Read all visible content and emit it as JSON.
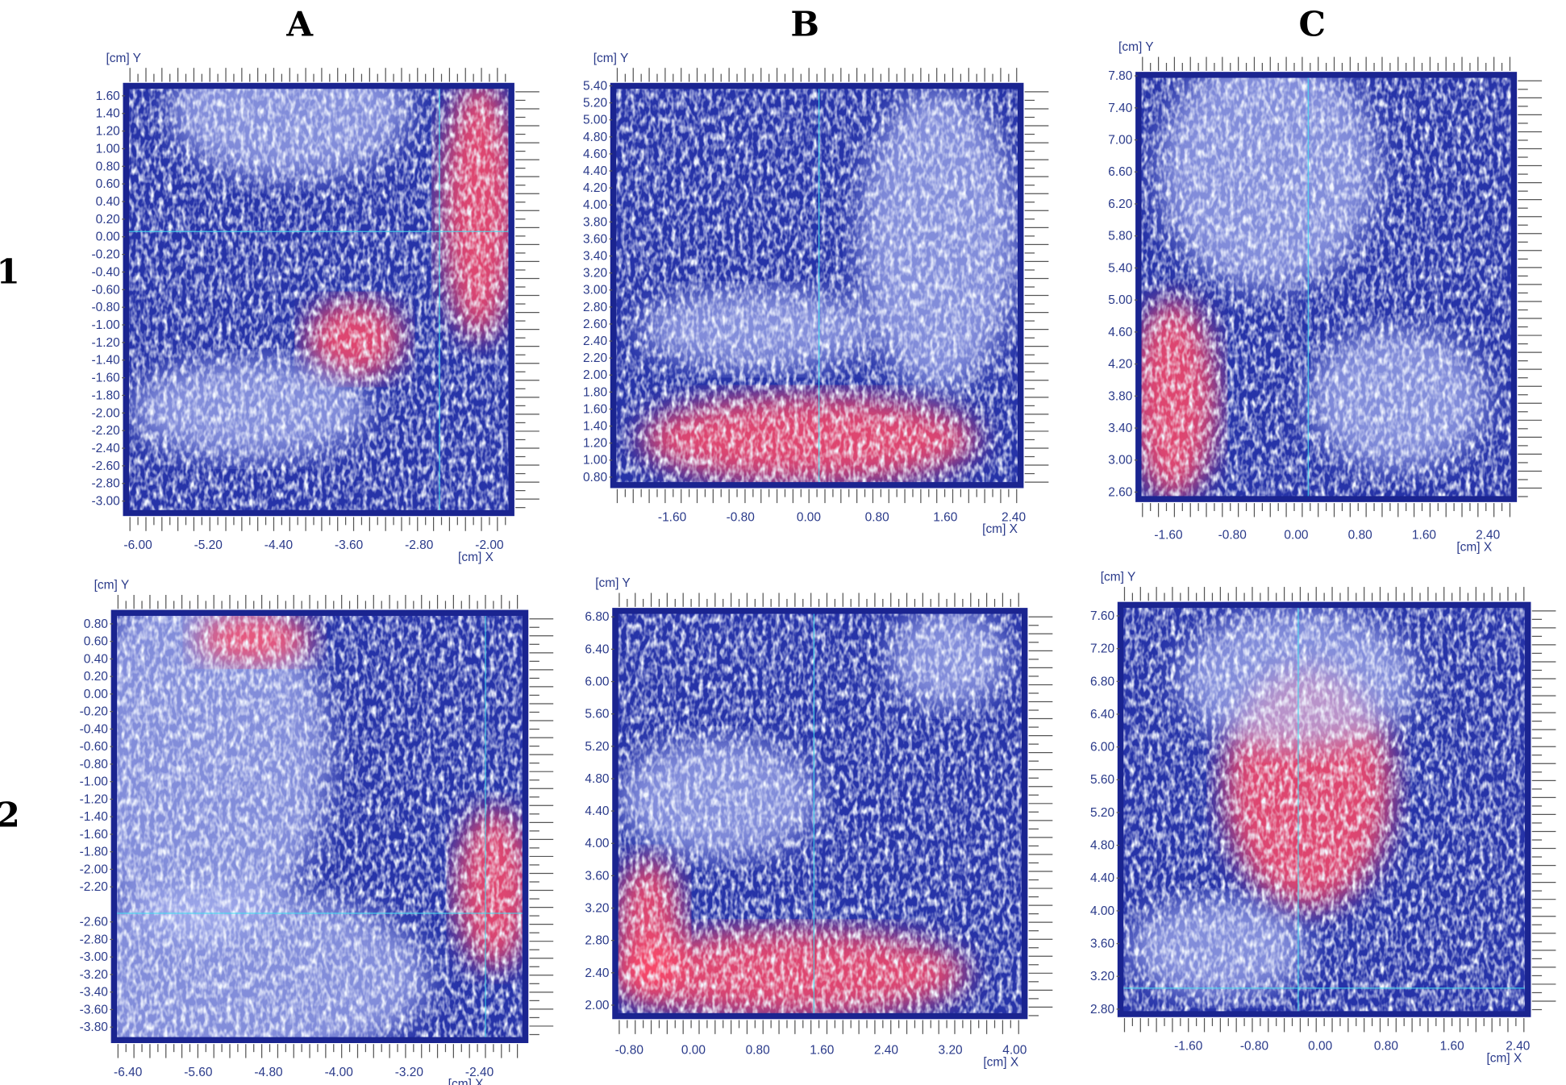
{
  "figure": {
    "column_labels": [
      "A",
      "B",
      "C"
    ],
    "row_labels": [
      "1",
      "2"
    ]
  },
  "colors": {
    "background_blue": "#2633a8",
    "speckle": "#dfe6ff",
    "hotspot_red": "#ff4a66",
    "crosshair": "#3fe0f0",
    "frame": "#1a2490",
    "axis_text": "#2a3a8a"
  },
  "panels": [
    {
      "id": "A1",
      "y_axis_label": "[cm] Y",
      "x_axis_label": "[cm] X",
      "y_ticks": [
        "1.60",
        "1.40",
        "1.20",
        "1.00",
        "0.80",
        "0.60",
        "0.40",
        "0.20",
        "0.00",
        "-0.20",
        "-0.40",
        "-0.60",
        "-0.80",
        "-1.00",
        "-1.20",
        "-1.40",
        "-1.60",
        "-1.80",
        "-2.00",
        "-2.20",
        "-2.40",
        "-2.60",
        "-2.80",
        "-3.00"
      ],
      "x_ticks": [
        "-6.00",
        "-5.20",
        "-4.40",
        "-3.60",
        "-2.80",
        "-2.00"
      ]
    },
    {
      "id": "B1",
      "y_axis_label": "[cm] Y",
      "x_axis_label": "[cm] X",
      "y_ticks": [
        "5.40",
        "5.20",
        "5.00",
        "4.80",
        "4.60",
        "4.40",
        "4.20",
        "4.00",
        "3.80",
        "3.60",
        "3.40",
        "3.20",
        "3.00",
        "2.80",
        "2.60",
        "2.40",
        "2.20",
        "2.00",
        "1.80",
        "1.60",
        "1.40",
        "1.20",
        "1.00",
        "0.80"
      ],
      "x_ticks": [
        "-1.60",
        "-0.80",
        "0.00",
        "0.80",
        "1.60",
        "2.40"
      ]
    },
    {
      "id": "C1",
      "y_axis_label": "[cm] Y",
      "x_axis_label": "[cm] X",
      "y_ticks": [
        "7.80",
        "7.40",
        "7.00",
        "6.60",
        "6.20",
        "5.80",
        "5.40",
        "5.00",
        "4.60",
        "4.20",
        "3.80",
        "3.40",
        "3.00",
        "2.60"
      ],
      "x_ticks": [
        "-1.60",
        "-0.80",
        "0.00",
        "0.80",
        "1.60",
        "2.40"
      ]
    },
    {
      "id": "A2",
      "y_axis_label": "[cm] Y",
      "x_axis_label": "[cm] X",
      "y_ticks": [
        "0.80",
        "0.60",
        "0.40",
        "0.20",
        "0.00",
        "-0.20",
        "-0.40",
        "-0.60",
        "-0.80",
        "-1.00",
        "-1.20",
        "-1.40",
        "-1.60",
        "-1.80",
        "-2.00",
        "-2.20",
        "-2.60",
        "-2.80",
        "-3.00",
        "-3.20",
        "-3.40",
        "-3.60",
        "-3.80"
      ],
      "x_ticks": [
        "-6.40",
        "-5.60",
        "-4.80",
        "-4.00",
        "-3.20",
        "-2.40"
      ]
    },
    {
      "id": "B2",
      "y_axis_label": "[cm] Y",
      "x_axis_label": "[cm] X",
      "y_ticks": [
        "6.80",
        "6.40",
        "6.00",
        "5.60",
        "5.20",
        "4.80",
        "4.40",
        "4.00",
        "3.60",
        "3.20",
        "2.80",
        "2.40",
        "2.00"
      ],
      "x_ticks": [
        "-0.80",
        "0.00",
        "0.80",
        "1.60",
        "2.40",
        "3.20",
        "4.00"
      ]
    },
    {
      "id": "C2",
      "y_axis_label": "[cm] Y",
      "x_axis_label": "[cm] X",
      "y_ticks": [
        "7.60",
        "7.20",
        "6.80",
        "6.40",
        "6.00",
        "5.60",
        "5.20",
        "4.80",
        "4.40",
        "4.00",
        "3.60",
        "3.20",
        "2.80"
      ],
      "x_ticks": [
        "-1.60",
        "-0.80",
        "0.00",
        "0.80",
        "1.60",
        "2.40"
      ]
    }
  ]
}
